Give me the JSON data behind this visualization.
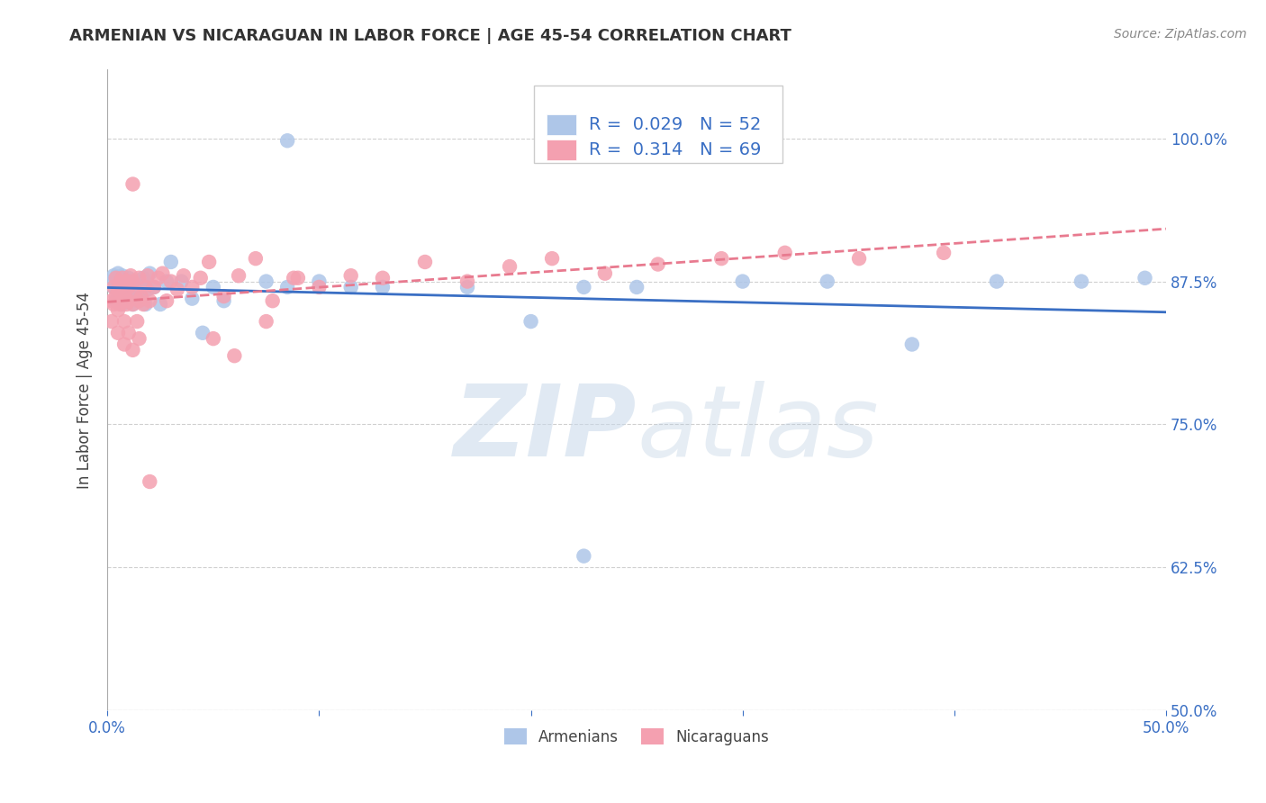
{
  "title": "ARMENIAN VS NICARAGUAN IN LABOR FORCE | AGE 45-54 CORRELATION CHART",
  "source": "Source: ZipAtlas.com",
  "ylabel": "In Labor Force | Age 45-54",
  "xlim": [
    0.0,
    0.5
  ],
  "ylim": [
    0.5,
    1.06
  ],
  "yticks": [
    0.5,
    0.625,
    0.75,
    0.875,
    1.0
  ],
  "ytick_labels": [
    "50.0%",
    "62.5%",
    "75.0%",
    "87.5%",
    "100.0%"
  ],
  "xticks": [
    0.0,
    0.1,
    0.2,
    0.3,
    0.4,
    0.5
  ],
  "xtick_labels": [
    "0.0%",
    "",
    "",
    "",
    "",
    "50.0%"
  ],
  "armenian_R": 0.029,
  "armenian_N": 52,
  "nicaraguan_R": 0.314,
  "nicaraguan_N": 69,
  "armenian_color": "#aec6e8",
  "nicaraguan_color": "#f4a0b0",
  "armenian_line_color": "#3a6fc4",
  "nicaraguan_line_color": "#e87a8f",
  "background_color": "#ffffff",
  "grid_color": "#d0d0d0",
  "title_color": "#333333",
  "axis_label_color": "#444444",
  "legend_label_armenian": "Armenians",
  "legend_label_nicaraguan": "Nicaraguans"
}
